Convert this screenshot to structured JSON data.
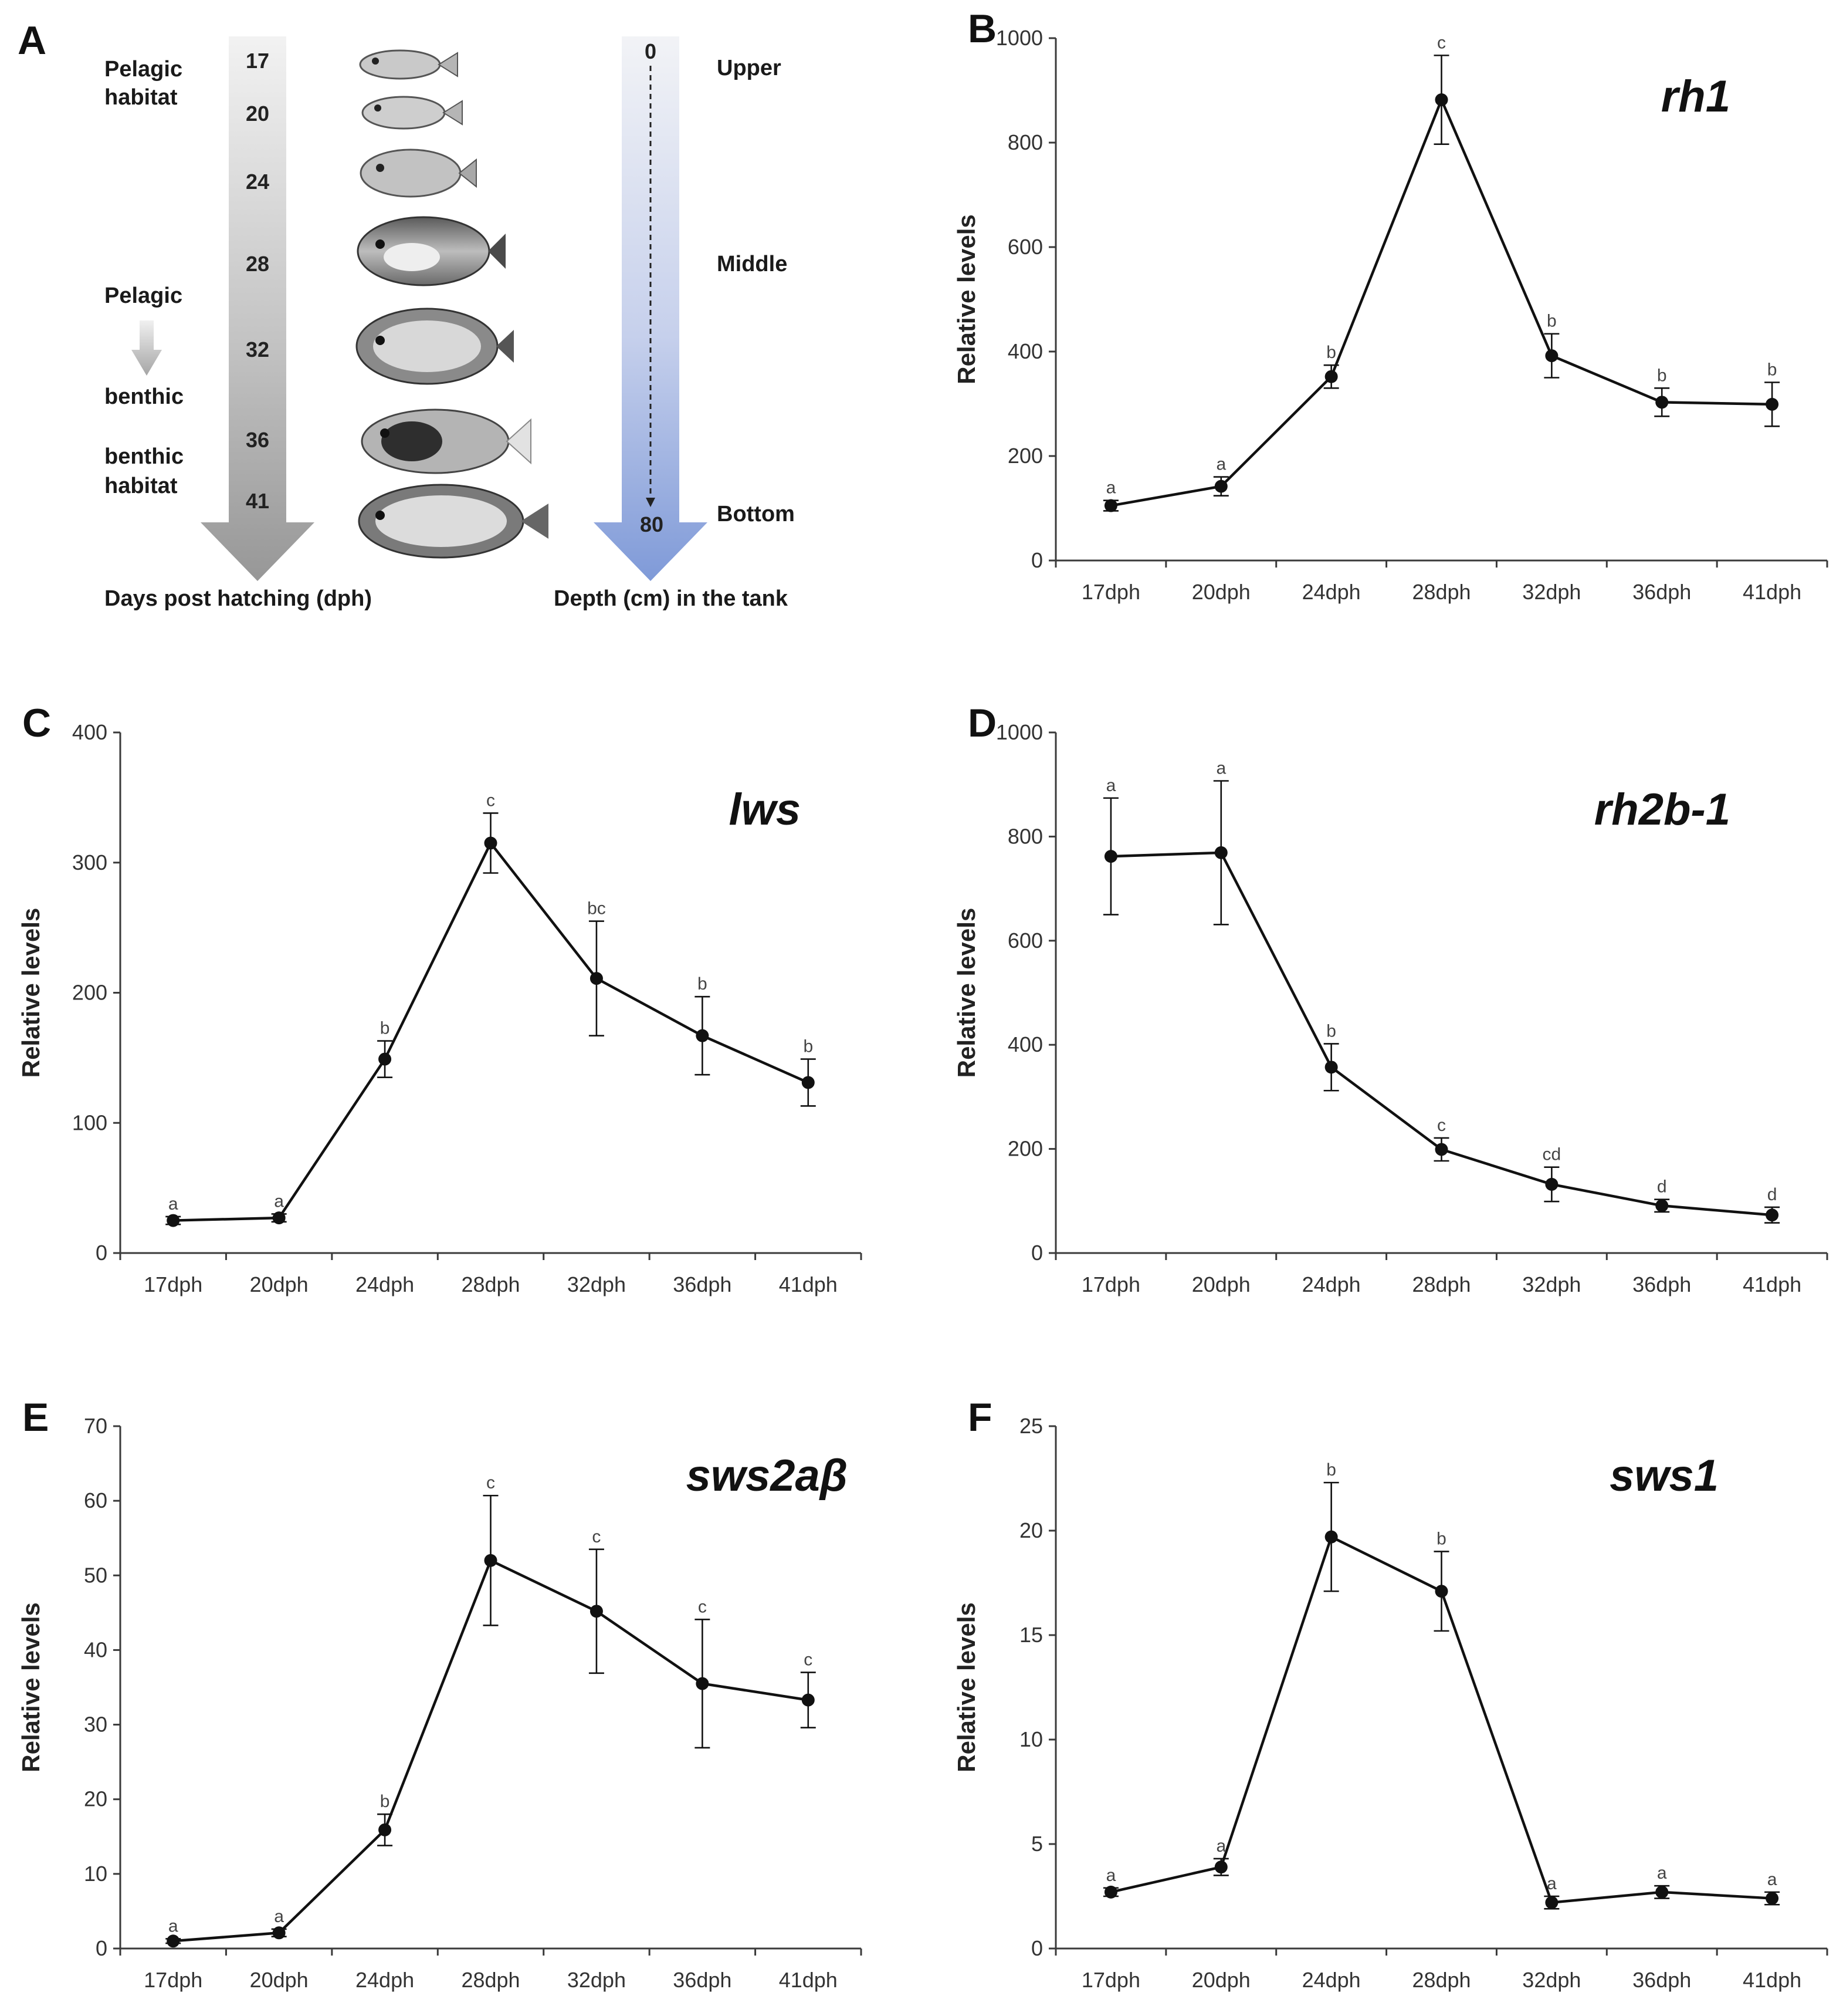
{
  "panel_a": {
    "letter": "A",
    "habitat_top_line1": "Pelagic",
    "habitat_top_line2": "habitat",
    "transition_top": "Pelagic",
    "transition_bottom": "benthic",
    "habitat_bottom_line1": "benthic",
    "habitat_bottom_line2": "habitat",
    "days": [
      "17",
      "20",
      "24",
      "28",
      "32",
      "36",
      "41"
    ],
    "days_caption": "Days post hatching (dph)",
    "depth_top": "0",
    "depth_bottom": "80",
    "depth_caption": "Depth (cm) in the tank",
    "zones": [
      "Upper",
      "Middle",
      "Bottom"
    ]
  },
  "chart_data": [
    {
      "panel": "B",
      "type": "line",
      "gene": "rh1",
      "categories": [
        "17dph",
        "20dph",
        "24dph",
        "28dph",
        "32dph",
        "36dph",
        "41dph"
      ],
      "values": [
        105,
        142,
        352,
        882,
        392,
        303,
        299
      ],
      "errors": [
        10,
        18,
        22,
        85,
        42,
        27,
        42
      ],
      "sig": [
        "a",
        "a",
        "b",
        "c",
        "b",
        "b",
        "b"
      ],
      "ylabel": "Relative levels",
      "ylim": [
        0,
        1000
      ],
      "yticks": [
        0,
        200,
        400,
        600,
        800,
        1000
      ]
    },
    {
      "panel": "C",
      "type": "line",
      "gene": "lws",
      "categories": [
        "17dph",
        "20dph",
        "24dph",
        "28dph",
        "32dph",
        "36dph",
        "41dph"
      ],
      "values": [
        25,
        27,
        149,
        315,
        211,
        167,
        131
      ],
      "errors": [
        3,
        3,
        14,
        23,
        44,
        30,
        18
      ],
      "sig": [
        "a",
        "a",
        "b",
        "c",
        "bc",
        "b",
        "b"
      ],
      "ylabel": "Relative levels",
      "ylim": [
        0,
        400
      ],
      "yticks": [
        0,
        100,
        200,
        300,
        400
      ]
    },
    {
      "panel": "D",
      "type": "line",
      "gene": "rh2b-1",
      "categories": [
        "17dph",
        "20dph",
        "24dph",
        "28dph",
        "32dph",
        "36dph",
        "41dph"
      ],
      "values": [
        762,
        769,
        357,
        199,
        132,
        91,
        73
      ],
      "errors": [
        112,
        138,
        45,
        22,
        33,
        12,
        15
      ],
      "sig": [
        "a",
        "a",
        "b",
        "c",
        "cd",
        "d",
        "d"
      ],
      "ylabel": "Relative levels",
      "ylim": [
        0,
        1000
      ],
      "yticks": [
        0,
        200,
        400,
        600,
        800,
        1000
      ]
    },
    {
      "panel": "E",
      "type": "line",
      "gene": "sws2aβ",
      "categories": [
        "17dph",
        "20dph",
        "24dph",
        "28dph",
        "32dph",
        "36dph",
        "41dph"
      ],
      "values": [
        1.0,
        2.1,
        15.9,
        52.0,
        45.2,
        35.5,
        33.3
      ],
      "errors": [
        0.3,
        0.5,
        2.1,
        8.7,
        8.3,
        8.6,
        3.7
      ],
      "sig": [
        "a",
        "a",
        "b",
        "c",
        "c",
        "c",
        "c"
      ],
      "ylabel": "Relative levels",
      "ylim": [
        0,
        70
      ],
      "yticks": [
        0,
        10,
        20,
        30,
        40,
        50,
        60,
        70
      ]
    },
    {
      "panel": "F",
      "type": "line",
      "gene": "sws1",
      "categories": [
        "17dph",
        "20dph",
        "24dph",
        "28dph",
        "32dph",
        "36dph",
        "41dph"
      ],
      "values": [
        2.7,
        3.9,
        19.7,
        17.1,
        2.2,
        2.7,
        2.4
      ],
      "errors": [
        0.2,
        0.4,
        2.6,
        1.9,
        0.3,
        0.3,
        0.3
      ],
      "sig": [
        "a",
        "a",
        "b",
        "b",
        "a",
        "a",
        "a"
      ],
      "ylabel": "Relative levels",
      "ylim": [
        0,
        25
      ],
      "yticks": [
        0,
        5,
        10,
        15,
        20,
        25
      ]
    }
  ]
}
